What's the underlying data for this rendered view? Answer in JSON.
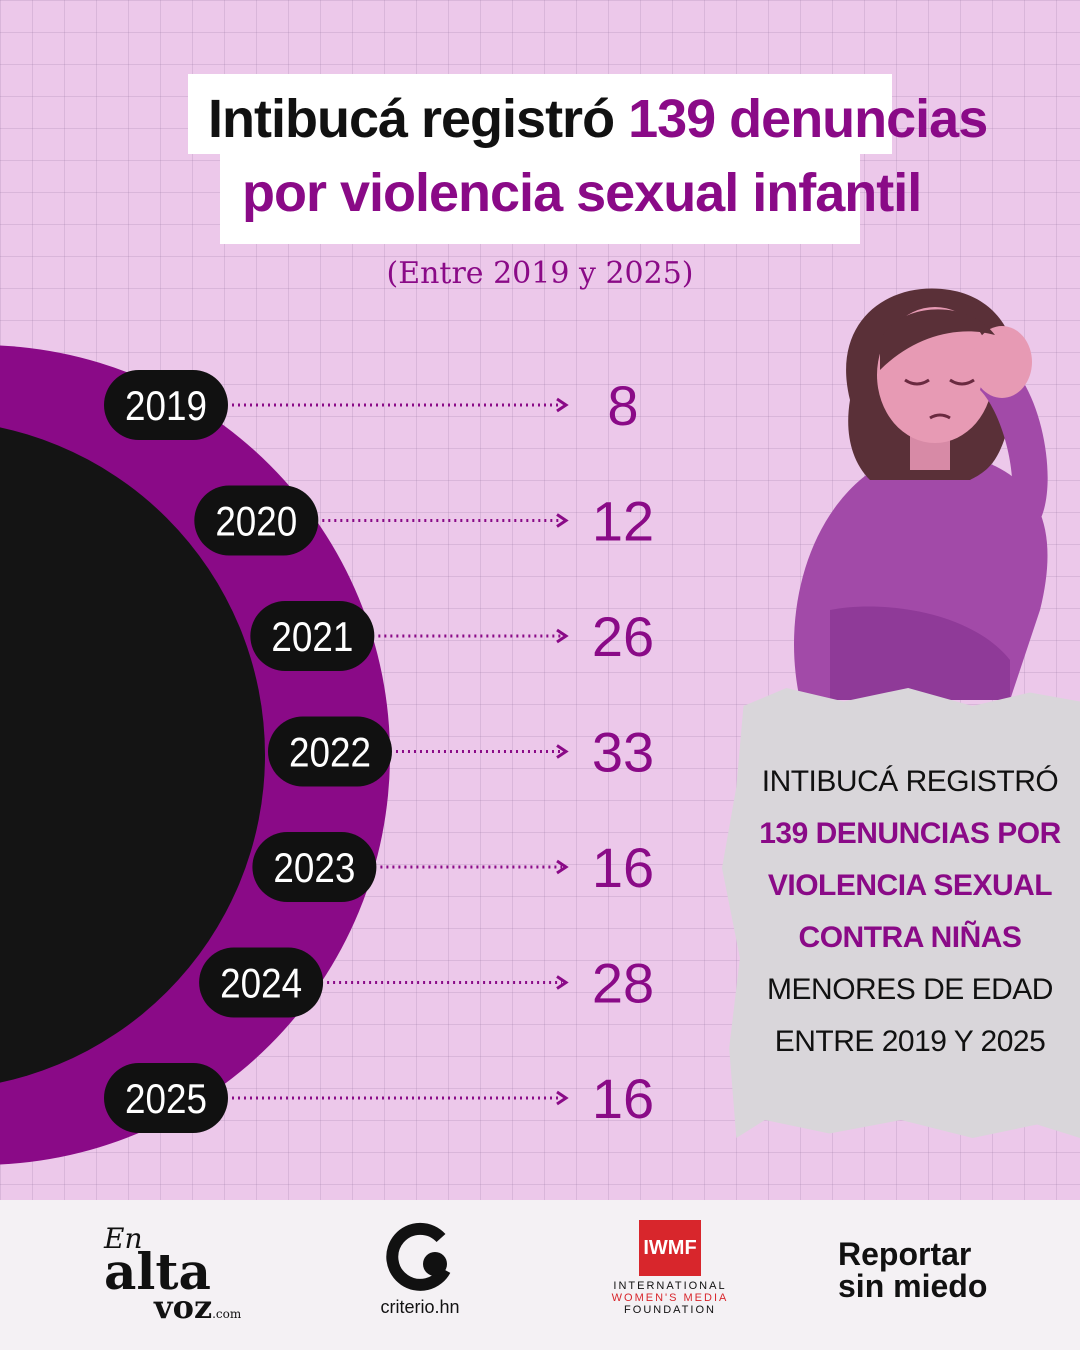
{
  "title": {
    "line1_prefix": "Intibucá registró ",
    "line1_highlight": "139 denuncias",
    "line2": "por violencia sexual infantil"
  },
  "subtitle": "(Entre 2019 y 2025)",
  "chart_data": {
    "type": "bar",
    "categories": [
      "2019",
      "2020",
      "2021",
      "2022",
      "2023",
      "2024",
      "2025"
    ],
    "values": [
      8,
      12,
      26,
      33,
      16,
      28,
      16
    ],
    "title": "Intibucá registró 139 denuncias por violencia sexual infantil",
    "subtitle": "(Entre 2019 y 2025)",
    "legend": "none",
    "grid": false
  },
  "note": {
    "line1": "INTIBUCÁ REGISTRÓ",
    "highlight1": "139 DENUNCIAS POR",
    "highlight2": "VIOLENCIA SEXUAL",
    "highlight3": "CONTRA NIÑAS",
    "line2": "MENORES DE EDAD",
    "line3": "ENTRE 2019 Y 2025"
  },
  "footer": {
    "logo1_a": "En",
    "logo1_b": "alta",
    "logo1_c": "voz",
    "logo1_d": ".com",
    "logo2": "criterio.hn",
    "logo3_mark": "IWMF",
    "logo3_l1": "INTERNATIONAL",
    "logo3_l2": "WOMEN'S MEDIA",
    "logo3_l3": "FOUNDATION",
    "logo4_l1": "Reportar",
    "logo4_l2": "sin miedo"
  },
  "colors": {
    "background": "#ecc8ea",
    "accent": "#8a0a87",
    "dark": "#111111"
  }
}
